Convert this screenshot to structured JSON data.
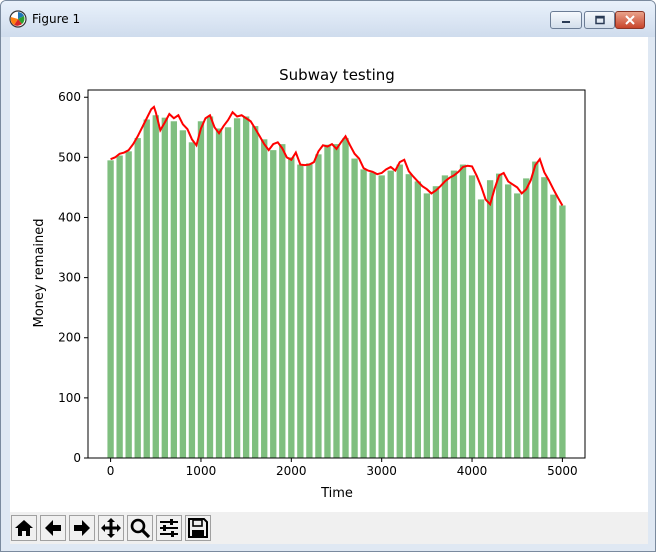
{
  "window": {
    "title": "Figure 1"
  },
  "icons": {
    "app": "matplotlib-icon",
    "minimize": "minimize-icon",
    "maximize": "maximize-icon",
    "close": "close-icon"
  },
  "toolbar": {
    "buttons": [
      "home-icon",
      "back-icon",
      "forward-icon",
      "pan-icon",
      "zoom-icon",
      "configure-subplots-icon",
      "save-icon"
    ]
  },
  "colors": {
    "bar": "#7fbf7f",
    "line": "#ff0000"
  },
  "chart_data": {
    "type": "bar",
    "title": "Subway testing",
    "xlabel": "Time",
    "ylabel": "Money remained",
    "xlim": [
      -250,
      5250
    ],
    "ylim": [
      0,
      612
    ],
    "xticks": [
      0,
      1000,
      2000,
      3000,
      4000,
      5000
    ],
    "yticks": [
      0,
      100,
      200,
      300,
      400,
      500,
      600
    ],
    "grid": false,
    "bar_width": 70,
    "bars": {
      "x": [
        0,
        100,
        200,
        300,
        400,
        500,
        600,
        700,
        800,
        900,
        1000,
        1100,
        1200,
        1300,
        1400,
        1500,
        1600,
        1700,
        1800,
        1900,
        2000,
        2100,
        2200,
        2300,
        2400,
        2500,
        2600,
        2700,
        2800,
        2900,
        3000,
        3100,
        3200,
        3300,
        3400,
        3500,
        3600,
        3700,
        3800,
        3900,
        4000,
        4100,
        4200,
        4300,
        4400,
        4500,
        4600,
        4700,
        4800,
        4900,
        5000
      ],
      "values": [
        495,
        503,
        510,
        532,
        563,
        570,
        566,
        560,
        545,
        525,
        560,
        568,
        548,
        550,
        565,
        568,
        552,
        530,
        512,
        522,
        500,
        488,
        490,
        505,
        521,
        522,
        532,
        498,
        480,
        475,
        470,
        478,
        488,
        472,
        460,
        440,
        452,
        470,
        478,
        488,
        470,
        430,
        462,
        473,
        455,
        440,
        465,
        493,
        467,
        438,
        420
      ]
    },
    "line": {
      "x": [
        0,
        50,
        100,
        150,
        200,
        250,
        300,
        350,
        400,
        450,
        480,
        500,
        550,
        600,
        650,
        700,
        750,
        800,
        850,
        900,
        950,
        1000,
        1050,
        1100,
        1150,
        1200,
        1250,
        1300,
        1350,
        1400,
        1450,
        1500,
        1550,
        1600,
        1650,
        1700,
        1750,
        1800,
        1850,
        1900,
        1950,
        2000,
        2050,
        2100,
        2150,
        2200,
        2250,
        2300,
        2350,
        2400,
        2450,
        2500,
        2550,
        2600,
        2650,
        2700,
        2750,
        2800,
        2850,
        2900,
        2950,
        3000,
        3050,
        3100,
        3150,
        3200,
        3250,
        3300,
        3350,
        3400,
        3450,
        3500,
        3550,
        3600,
        3650,
        3700,
        3750,
        3800,
        3850,
        3900,
        3950,
        4000,
        4050,
        4100,
        4150,
        4200,
        4250,
        4300,
        4350,
        4400,
        4450,
        4500,
        4550,
        4600,
        4650,
        4700,
        4750,
        4800,
        4850,
        4900,
        4950,
        5000
      ],
      "y": [
        497,
        500,
        506,
        508,
        512,
        522,
        535,
        550,
        565,
        580,
        584,
        575,
        545,
        558,
        572,
        565,
        570,
        555,
        547,
        530,
        520,
        548,
        565,
        570,
        550,
        540,
        552,
        562,
        575,
        568,
        570,
        565,
        560,
        548,
        535,
        522,
        512,
        522,
        525,
        515,
        500,
        496,
        508,
        488,
        487,
        488,
        492,
        510,
        520,
        518,
        522,
        514,
        525,
        535,
        520,
        506,
        498,
        482,
        478,
        476,
        472,
        474,
        480,
        484,
        478,
        492,
        496,
        477,
        468,
        460,
        452,
        447,
        440,
        445,
        452,
        460,
        466,
        470,
        476,
        484,
        486,
        485,
        470,
        452,
        430,
        422,
        448,
        470,
        474,
        460,
        455,
        450,
        440,
        447,
        462,
        487,
        497,
        475,
        462,
        447,
        433,
        420
      ]
    }
  }
}
